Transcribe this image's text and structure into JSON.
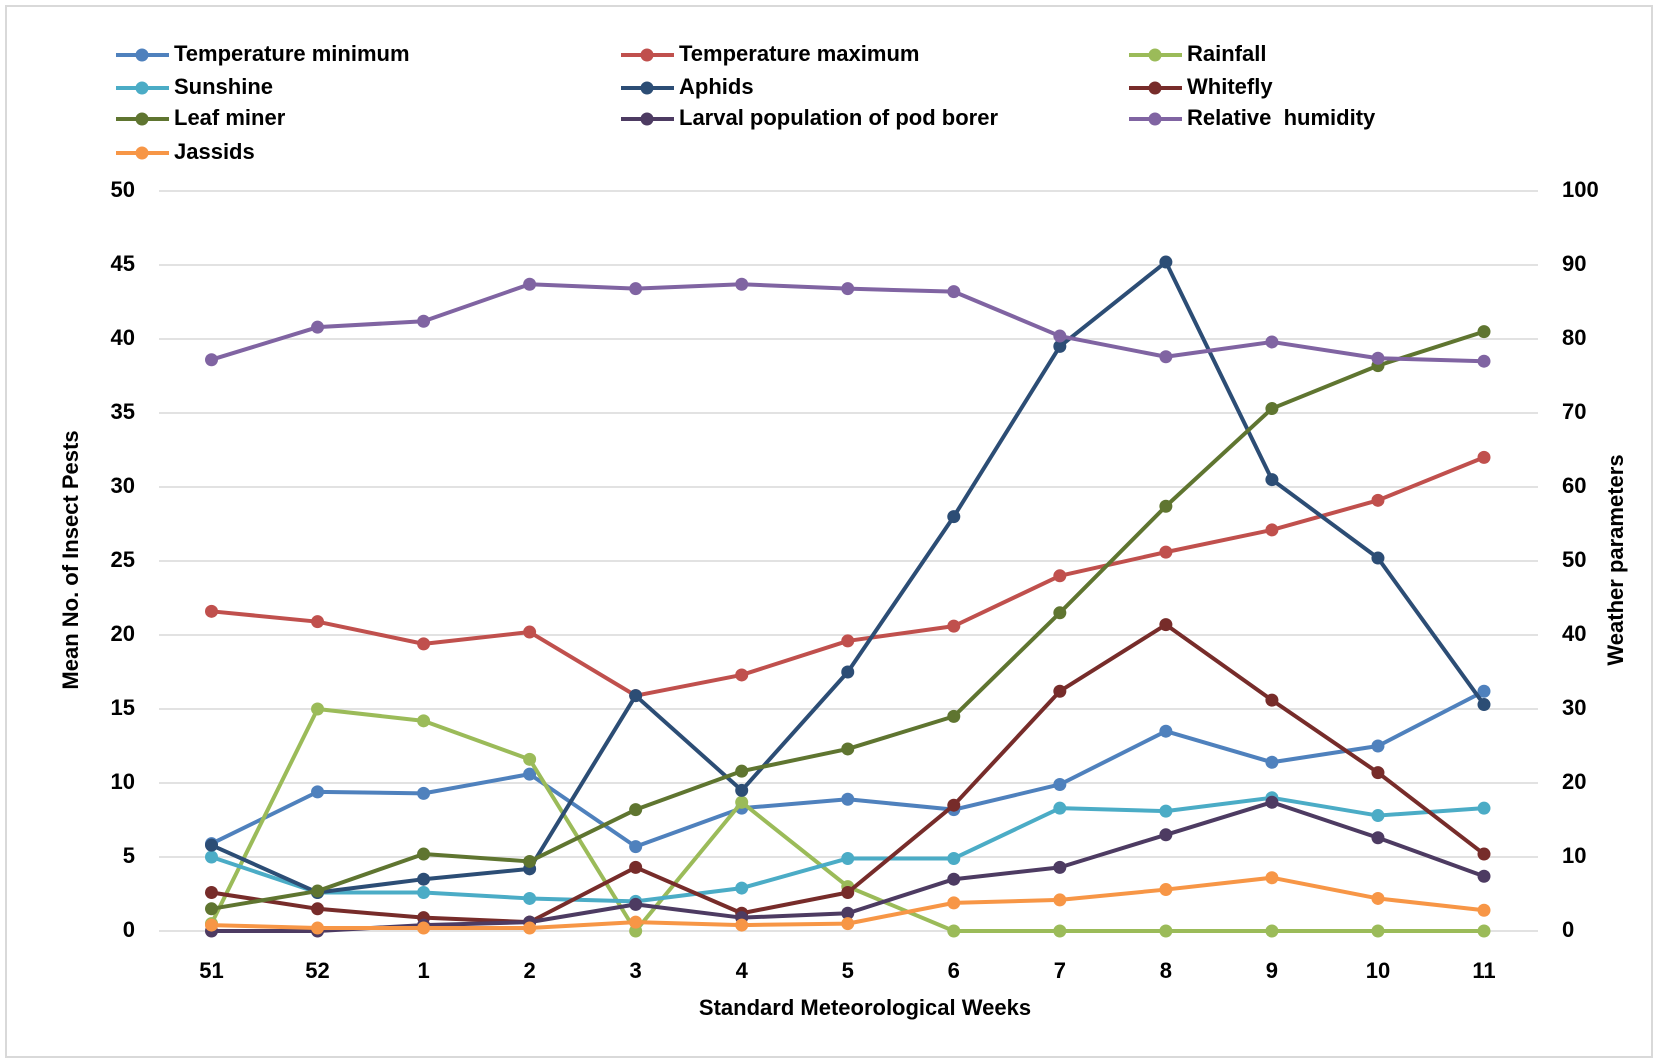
{
  "chart_data": {
    "type": "line",
    "categories": [
      "51",
      "52",
      "1",
      "2",
      "3",
      "4",
      "5",
      "6",
      "7",
      "8",
      "9",
      "10",
      "11"
    ],
    "x_label": "Standard Meteorological Weeks",
    "y_label": "Mean No. of Insect Pests",
    "y2_label": "Weather parameters",
    "ylim": [
      0,
      50
    ],
    "yticks": [
      0,
      5,
      10,
      15,
      20,
      25,
      30,
      35,
      40,
      45,
      50
    ],
    "y2lim": [
      0,
      100
    ],
    "y2ticks": [
      0,
      10,
      20,
      30,
      40,
      50,
      60,
      70,
      80,
      90,
      100
    ],
    "grid": true,
    "legend": "top",
    "series": [
      {
        "name": "Temperature minimum",
        "color": "#4f81bd",
        "axis": "y2",
        "values": [
          11.8,
          18.8,
          18.6,
          21.2,
          11.4,
          16.6,
          17.8,
          16.4,
          19.8,
          27,
          22.8,
          25,
          32.4
        ]
      },
      {
        "name": "Temperature maximum",
        "color": "#c0504d",
        "axis": "y2",
        "values": [
          43.2,
          41.8,
          38.8,
          40.4,
          31.8,
          34.6,
          39.2,
          41.2,
          48,
          51.2,
          54.2,
          58.2,
          64
        ]
      },
      {
        "name": "Rainfall",
        "color": "#9bbb59",
        "axis": "y2",
        "values": [
          1,
          30,
          28.4,
          23.2,
          0,
          17.4,
          6,
          0,
          0,
          0,
          0,
          0,
          0
        ]
      },
      {
        "name": "Sunshine",
        "color": "#4bacc6",
        "axis": "y2",
        "values": [
          10,
          5.2,
          5.2,
          4.4,
          4,
          5.8,
          9.8,
          9.8,
          16.6,
          16.2,
          18,
          15.6,
          16.6
        ]
      },
      {
        "name": "Aphids",
        "color": "#2c4d75",
        "values": [
          5.8,
          2.6,
          3.5,
          4.2,
          15.9,
          9.5,
          17.5,
          28,
          39.5,
          45.2,
          30.5,
          25.2,
          15.3
        ]
      },
      {
        "name": "Whitefly",
        "color": "#772c2a",
        "values": [
          2.6,
          1.5,
          0.9,
          0.6,
          4.3,
          1.2,
          2.6,
          8.5,
          16.2,
          20.7,
          15.6,
          10.7,
          5.2
        ]
      },
      {
        "name": "Leaf miner",
        "color": "#5f7530",
        "values": [
          1.5,
          2.7,
          5.2,
          4.7,
          8.2,
          10.8,
          12.3,
          14.5,
          21.5,
          28.7,
          35.3,
          38.2,
          40.5
        ]
      },
      {
        "name": "Larval population of pod borer",
        "color": "#4d3b62",
        "values": [
          0,
          0,
          0.4,
          0.6,
          1.8,
          0.9,
          1.2,
          3.5,
          4.3,
          6.5,
          8.7,
          6.3,
          3.7
        ]
      },
      {
        "name": "Relative  humidity",
        "color": "#8064a2",
        "axis": "y2",
        "values": [
          77.2,
          81.6,
          82.4,
          87.4,
          86.8,
          87.4,
          86.8,
          86.4,
          80.4,
          77.6,
          79.6,
          77.4,
          77
        ]
      },
      {
        "name": "Jassids",
        "color": "#f79646",
        "values": [
          0.4,
          0.2,
          0.2,
          0.2,
          0.6,
          0.4,
          0.5,
          1.9,
          2.1,
          2.8,
          3.6,
          2.2,
          1.4
        ]
      }
    ]
  }
}
